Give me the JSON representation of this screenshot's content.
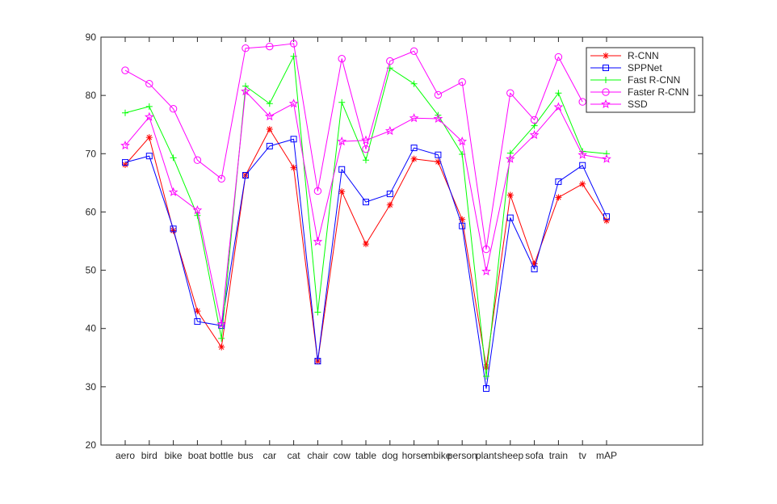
{
  "chart_data": {
    "type": "line",
    "title": "",
    "xlabel": "",
    "ylabel": "",
    "ylim": [
      20,
      90
    ],
    "yticks": [
      20,
      30,
      40,
      50,
      60,
      70,
      80,
      90
    ],
    "grid": false,
    "legend_position": "top-right",
    "categories": [
      "aero",
      "bird",
      "bike",
      "boat",
      "bottle",
      "bus",
      "car",
      "cat",
      "chair",
      "cow",
      "table",
      "dog",
      "horse",
      "mbike",
      "person",
      "plant",
      "sheep",
      "sofa",
      "train",
      "tv",
      "mAP"
    ],
    "series": [
      {
        "name": "R-CNN",
        "color": "#ff0000",
        "marker": "asterisk",
        "values": [
          68.1,
          72.8,
          56.8,
          43.0,
          36.8,
          66.3,
          74.2,
          67.6,
          34.4,
          63.5,
          54.5,
          61.2,
          69.1,
          68.6,
          58.7,
          33.4,
          62.9,
          51.1,
          62.5,
          64.8,
          58.5
        ]
      },
      {
        "name": "SPPNet",
        "color": "#0000ff",
        "marker": "square",
        "values": [
          68.5,
          69.6,
          57.1,
          41.2,
          40.5,
          66.3,
          71.3,
          72.5,
          34.4,
          67.3,
          61.7,
          63.1,
          71.0,
          69.8,
          57.6,
          29.7,
          59.0,
          50.2,
          65.2,
          68.0,
          59.2
        ]
      },
      {
        "name": "Fast R-CNN",
        "color": "#00ff00",
        "marker": "plus",
        "values": [
          77.0,
          78.1,
          69.3,
          59.4,
          38.3,
          81.6,
          78.6,
          86.7,
          42.8,
          78.8,
          68.9,
          84.7,
          82.0,
          76.6,
          69.9,
          31.8,
          70.1,
          74.8,
          80.4,
          70.4,
          70.0
        ]
      },
      {
        "name": "Faster R-CNN",
        "color": "#ff00ff",
        "marker": "circle",
        "values": [
          84.3,
          82.0,
          77.7,
          68.9,
          65.7,
          88.1,
          88.4,
          88.9,
          63.6,
          86.3,
          70.8,
          85.9,
          87.6,
          80.1,
          82.3,
          53.6,
          80.4,
          75.8,
          86.6,
          78.9,
          null
        ]
      },
      {
        "name": "SSD",
        "color": "#ff00ff",
        "marker": "star",
        "values": [
          71.4,
          76.3,
          63.4,
          60.3,
          40.7,
          80.7,
          76.4,
          78.6,
          54.9,
          72.1,
          72.3,
          73.9,
          76.1,
          76.0,
          72.1,
          49.8,
          69.1,
          73.2,
          78.0,
          69.8,
          69.1
        ]
      }
    ]
  }
}
